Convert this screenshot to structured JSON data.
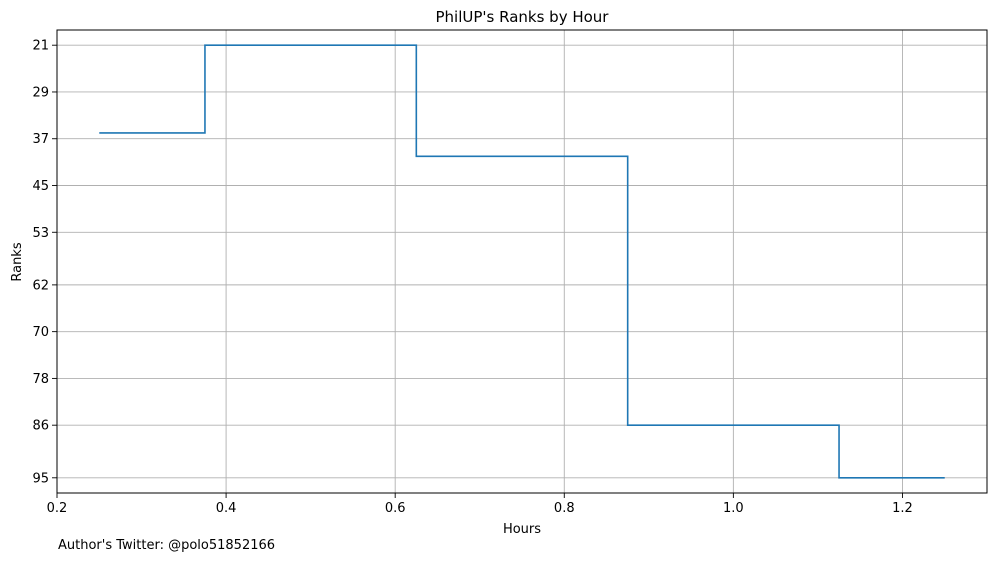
{
  "chart_data": {
    "type": "line",
    "drawstyle": "steps-post",
    "title": "PhilUP's Ranks by Hour",
    "xlabel": "Hours",
    "ylabel": "Ranks",
    "xlim": [
      0.2,
      1.3
    ],
    "ylim": [
      97.6,
      18.4
    ],
    "y_inverted": true,
    "grid": true,
    "x_ticks": [
      0.2,
      0.4,
      0.6,
      0.8,
      1.0,
      1.2
    ],
    "x_tick_labels": [
      "0.2",
      "0.4",
      "0.6",
      "0.8",
      "1.0",
      "1.2"
    ],
    "y_ticks": [
      21,
      29,
      37,
      45,
      53,
      62,
      70,
      78,
      86,
      95
    ],
    "y_tick_labels": [
      "21",
      "29",
      "37",
      "45",
      "53",
      "62",
      "70",
      "78",
      "86",
      "95"
    ],
    "series": [
      {
        "color": "#1f77b4",
        "x": [
          0.25,
          0.375,
          0.625,
          0.875,
          1.125,
          1.25
        ],
        "y": [
          36,
          21,
          40,
          86,
          95,
          95
        ]
      }
    ]
  },
  "footnote": "Author's Twitter: @polo51852166"
}
